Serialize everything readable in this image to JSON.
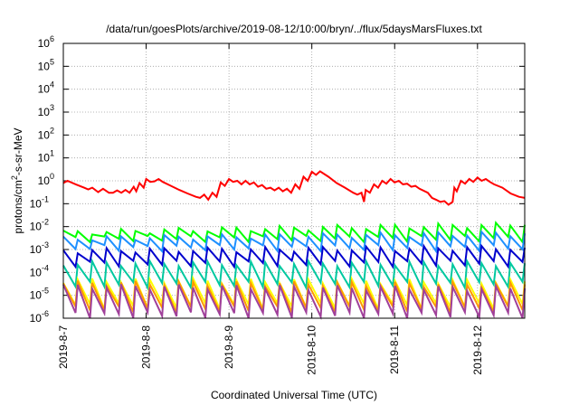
{
  "chart_data": {
    "type": "line",
    "title": "/data/run/goesPlots/archive/2019-08-12/10:00/bryn/../flux/5daysMarsFluxes.txt",
    "xlabel": "Coordinated Universal Time (UTC)",
    "ylabel": {
      "pre": "protons/cm",
      "sup": "2",
      "post": "-s-sr-MeV"
    },
    "xlim": [
      0,
      5.57
    ],
    "x_ticks": [
      {
        "x": 0,
        "label": "2019-8-7"
      },
      {
        "x": 1,
        "label": "2019-8-8"
      },
      {
        "x": 2,
        "label": "2019-8-9"
      },
      {
        "x": 3,
        "label": "2019-8-10"
      },
      {
        "x": 4,
        "label": "2019-8-11"
      },
      {
        "x": 5,
        "label": "2019-8-12"
      }
    ],
    "y_scale": "log",
    "ylim": [
      1e-06,
      1000000.0
    ],
    "y_ticks": [
      {
        "exp": -6,
        "label": "10",
        "sup": "-6"
      },
      {
        "exp": -5,
        "label": "10",
        "sup": "-5"
      },
      {
        "exp": -4,
        "label": "10",
        "sup": "-4"
      },
      {
        "exp": -3,
        "label": "10",
        "sup": "-3"
      },
      {
        "exp": -2,
        "label": "10",
        "sup": "-2"
      },
      {
        "exp": -1,
        "label": "10",
        "sup": "-1"
      },
      {
        "exp": 0,
        "label": "10",
        "sup": "0"
      },
      {
        "exp": 1,
        "label": "10",
        "sup": "1"
      },
      {
        "exp": 2,
        "label": "10",
        "sup": "2"
      },
      {
        "exp": 3,
        "label": "10",
        "sup": "3"
      },
      {
        "exp": 4,
        "label": "10",
        "sup": "4"
      },
      {
        "exp": 5,
        "label": "10",
        "sup": "5"
      },
      {
        "exp": 6,
        "label": "10",
        "sup": "6"
      }
    ],
    "grid": true,
    "series": [
      {
        "color": "#ff0000",
        "sawtooth": false,
        "points": [
          [
            0.0,
            0.8
          ],
          [
            0.05,
            1.0
          ],
          [
            0.15,
            0.7
          ],
          [
            0.25,
            0.5
          ],
          [
            0.3,
            0.42
          ],
          [
            0.35,
            0.5
          ],
          [
            0.42,
            0.32
          ],
          [
            0.48,
            0.45
          ],
          [
            0.55,
            0.3
          ],
          [
            0.6,
            0.3
          ],
          [
            0.65,
            0.38
          ],
          [
            0.7,
            0.3
          ],
          [
            0.75,
            0.4
          ],
          [
            0.8,
            0.3
          ],
          [
            0.85,
            0.55
          ],
          [
            0.88,
            0.35
          ],
          [
            0.92,
            0.8
          ],
          [
            0.97,
            0.5
          ],
          [
            1.0,
            1.2
          ],
          [
            1.05,
            0.9
          ],
          [
            1.1,
            0.95
          ],
          [
            1.15,
            1.2
          ],
          [
            1.2,
            0.9
          ],
          [
            1.3,
            0.6
          ],
          [
            1.4,
            0.4
          ],
          [
            1.5,
            0.28
          ],
          [
            1.6,
            0.2
          ],
          [
            1.65,
            0.18
          ],
          [
            1.7,
            0.25
          ],
          [
            1.75,
            0.15
          ],
          [
            1.8,
            0.3
          ],
          [
            1.85,
            0.2
          ],
          [
            1.9,
            0.85
          ],
          [
            1.95,
            0.6
          ],
          [
            2.0,
            1.2
          ],
          [
            2.05,
            0.9
          ],
          [
            2.1,
            1.0
          ],
          [
            2.15,
            0.7
          ],
          [
            2.2,
            1.0
          ],
          [
            2.25,
            0.7
          ],
          [
            2.3,
            0.85
          ],
          [
            2.35,
            0.55
          ],
          [
            2.4,
            0.65
          ],
          [
            2.45,
            0.45
          ],
          [
            2.5,
            0.5
          ],
          [
            2.55,
            0.38
          ],
          [
            2.6,
            0.5
          ],
          [
            2.65,
            0.35
          ],
          [
            2.7,
            0.45
          ],
          [
            2.75,
            0.3
          ],
          [
            2.8,
            0.7
          ],
          [
            2.85,
            0.45
          ],
          [
            2.9,
            1.5
          ],
          [
            2.95,
            1.0
          ],
          [
            3.0,
            2.5
          ],
          [
            3.05,
            1.8
          ],
          [
            3.1,
            2.6
          ],
          [
            3.2,
            1.5
          ],
          [
            3.3,
            0.8
          ],
          [
            3.4,
            0.5
          ],
          [
            3.5,
            0.3
          ],
          [
            3.55,
            0.25
          ],
          [
            3.6,
            0.3
          ],
          [
            3.63,
            0.12
          ],
          [
            3.65,
            0.4
          ],
          [
            3.7,
            0.3
          ],
          [
            3.75,
            0.7
          ],
          [
            3.8,
            0.5
          ],
          [
            3.85,
            1.0
          ],
          [
            3.9,
            0.75
          ],
          [
            3.95,
            1.2
          ],
          [
            4.0,
            0.85
          ],
          [
            4.05,
            1.0
          ],
          [
            4.1,
            0.7
          ],
          [
            4.15,
            0.75
          ],
          [
            4.2,
            0.55
          ],
          [
            4.25,
            0.6
          ],
          [
            4.3,
            0.45
          ],
          [
            4.4,
            0.3
          ],
          [
            4.45,
            0.18
          ],
          [
            4.5,
            0.15
          ],
          [
            4.55,
            0.12
          ],
          [
            4.6,
            0.13
          ],
          [
            4.65,
            0.09
          ],
          [
            4.7,
            0.12
          ],
          [
            4.72,
            0.5
          ],
          [
            4.75,
            0.35
          ],
          [
            4.8,
            1.0
          ],
          [
            4.85,
            0.75
          ],
          [
            4.9,
            1.2
          ],
          [
            4.95,
            0.9
          ],
          [
            5.0,
            1.4
          ],
          [
            5.05,
            1.0
          ],
          [
            5.1,
            1.2
          ],
          [
            5.15,
            0.9
          ],
          [
            5.2,
            0.7
          ],
          [
            5.3,
            0.5
          ],
          [
            5.4,
            0.28
          ],
          [
            5.5,
            0.2
          ],
          [
            5.57,
            0.18
          ]
        ]
      },
      {
        "color": "#00ff00",
        "sawtooth": true,
        "base": 0.0055,
        "low": 0.003,
        "end_high": 0.012
      },
      {
        "color": "#1e90ff",
        "sawtooth": true,
        "base": 0.003,
        "low": 0.0012,
        "end_high": 0.005
      },
      {
        "color": "#0000cd",
        "sawtooth": true,
        "base": 0.0009,
        "low": 0.00025,
        "end_high": 0.0012
      },
      {
        "color": "#00c8a0",
        "sawtooth": true,
        "base": 0.00025,
        "low": 3e-05,
        "end_high": 0.00025
      },
      {
        "color": "#ffff00",
        "sawtooth": true,
        "base": 4.5e-05,
        "low": 3.5e-06,
        "end_high": 4e-05
      },
      {
        "color": "#ff9900",
        "sawtooth": true,
        "base": 3.5e-05,
        "low": 2.5e-06,
        "end_high": 3e-05
      },
      {
        "color": "#a0409a",
        "sawtooth": true,
        "base": 2.5e-05,
        "low": 1.4e-06,
        "end_high": 2e-05
      }
    ]
  }
}
